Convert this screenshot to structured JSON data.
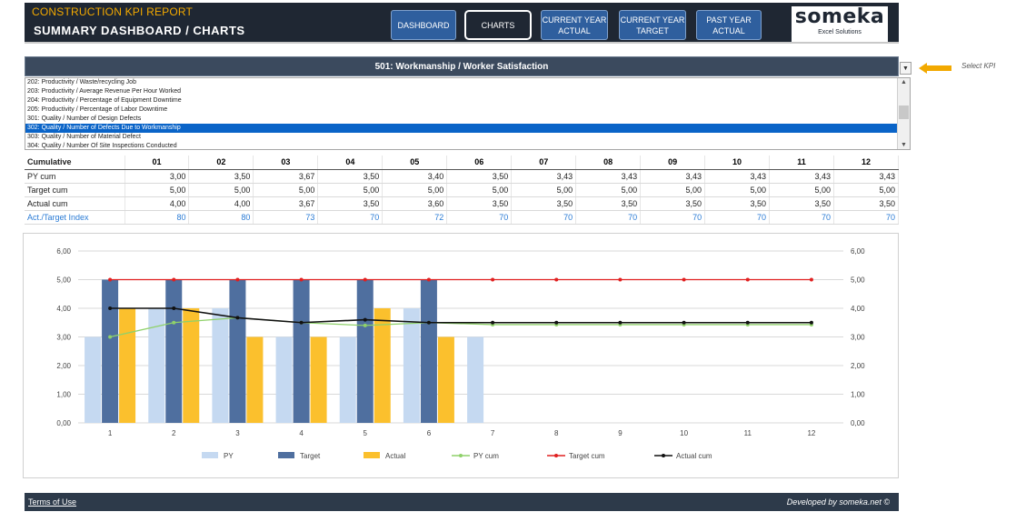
{
  "header": {
    "report_title": "CONSTRUCTION KPI REPORT",
    "page_title": "SUMMARY DASHBOARD / CHARTS",
    "nav": [
      {
        "label": "DASHBOARD"
      },
      {
        "label": "CHARTS"
      },
      {
        "label": "CURRENT YEAR\nACTUAL"
      },
      {
        "label": "CURRENT YEAR\nTARGET"
      },
      {
        "label": "PAST YEAR\nACTUAL"
      }
    ],
    "logo_main": "someka",
    "logo_sub": "Excel Solutions"
  },
  "kpi": {
    "selected_header": "501: Workmanship / Worker Satisfaction",
    "select_label": "Select KPI",
    "dropdown_icon": "chevron-down-icon",
    "list": [
      "202: Productivity / Waste/recycling Job",
      "203: Productivity / Average Revenue Per Hour Worked",
      "204: Productivity / Percentage of Equipment Downtime",
      "205: Productivity / Percentage of Labor Downtime",
      "301: Quality / Number of Design Defects",
      "302: Quality / Number of Defects Due to Workmanship",
      "303: Quality / Number of Material Defect",
      "304: Quality / Number Of Site Inspections Conducted"
    ],
    "selected_index": 5
  },
  "table": {
    "header_label": "Cumulative",
    "months": [
      "01",
      "02",
      "03",
      "04",
      "05",
      "06",
      "07",
      "08",
      "09",
      "10",
      "11",
      "12"
    ],
    "rows": [
      {
        "label": "PY cum",
        "values": [
          "3,00",
          "3,50",
          "3,67",
          "3,50",
          "3,40",
          "3,50",
          "3,43",
          "3,43",
          "3,43",
          "3,43",
          "3,43",
          "3,43"
        ]
      },
      {
        "label": "Target cum",
        "values": [
          "5,00",
          "5,00",
          "5,00",
          "5,00",
          "5,00",
          "5,00",
          "5,00",
          "5,00",
          "5,00",
          "5,00",
          "5,00",
          "5,00"
        ]
      },
      {
        "label": "Actual cum",
        "values": [
          "4,00",
          "4,00",
          "3,67",
          "3,50",
          "3,60",
          "3,50",
          "3,50",
          "3,50",
          "3,50",
          "3,50",
          "3,50",
          "3,50"
        ]
      },
      {
        "label": "Act./Target Index",
        "values": [
          "80",
          "80",
          "73",
          "70",
          "72",
          "70",
          "70",
          "70",
          "70",
          "70",
          "70",
          "70"
        ]
      }
    ]
  },
  "chart_data": {
    "type": "bar",
    "title": "",
    "xlabel": "",
    "ylabel": "",
    "categories": [
      "1",
      "2",
      "3",
      "4",
      "5",
      "6",
      "7",
      "8",
      "9",
      "10",
      "11",
      "12"
    ],
    "ylim": [
      0,
      6
    ],
    "yticks": [
      "0,00",
      "1,00",
      "2,00",
      "3,00",
      "4,00",
      "5,00",
      "6,00"
    ],
    "secondary_ylim": [
      0,
      6
    ],
    "legend_position": "bottom",
    "grid": true,
    "series": [
      {
        "name": "PY",
        "kind": "bar",
        "color": "#c5d9f1",
        "values": [
          3,
          4,
          4,
          3,
          3,
          4,
          3,
          null,
          null,
          null,
          null,
          null
        ]
      },
      {
        "name": "Target",
        "kind": "bar",
        "color": "#4f6f9f",
        "values": [
          5,
          5,
          5,
          5,
          5,
          5,
          null,
          null,
          null,
          null,
          null,
          null
        ]
      },
      {
        "name": "Actual",
        "kind": "bar",
        "color": "#fbc02d",
        "values": [
          4,
          4,
          3,
          3,
          4,
          3,
          null,
          null,
          null,
          null,
          null,
          null
        ]
      },
      {
        "name": "PY cum",
        "kind": "line",
        "color": "#8fd16a",
        "values": [
          3.0,
          3.5,
          3.67,
          3.5,
          3.4,
          3.5,
          3.43,
          3.43,
          3.43,
          3.43,
          3.43,
          3.43
        ]
      },
      {
        "name": "Target cum",
        "kind": "line",
        "color": "#e02020",
        "values": [
          5,
          5,
          5,
          5,
          5,
          5,
          5,
          5,
          5,
          5,
          5,
          5
        ]
      },
      {
        "name": "Actual cum",
        "kind": "line",
        "color": "#111111",
        "values": [
          4.0,
          4.0,
          3.67,
          3.5,
          3.6,
          3.5,
          3.5,
          3.5,
          3.5,
          3.5,
          3.5,
          3.5
        ]
      }
    ]
  },
  "footer": {
    "terms": "Terms of Use",
    "developed": "Developed by someka.net ©"
  }
}
